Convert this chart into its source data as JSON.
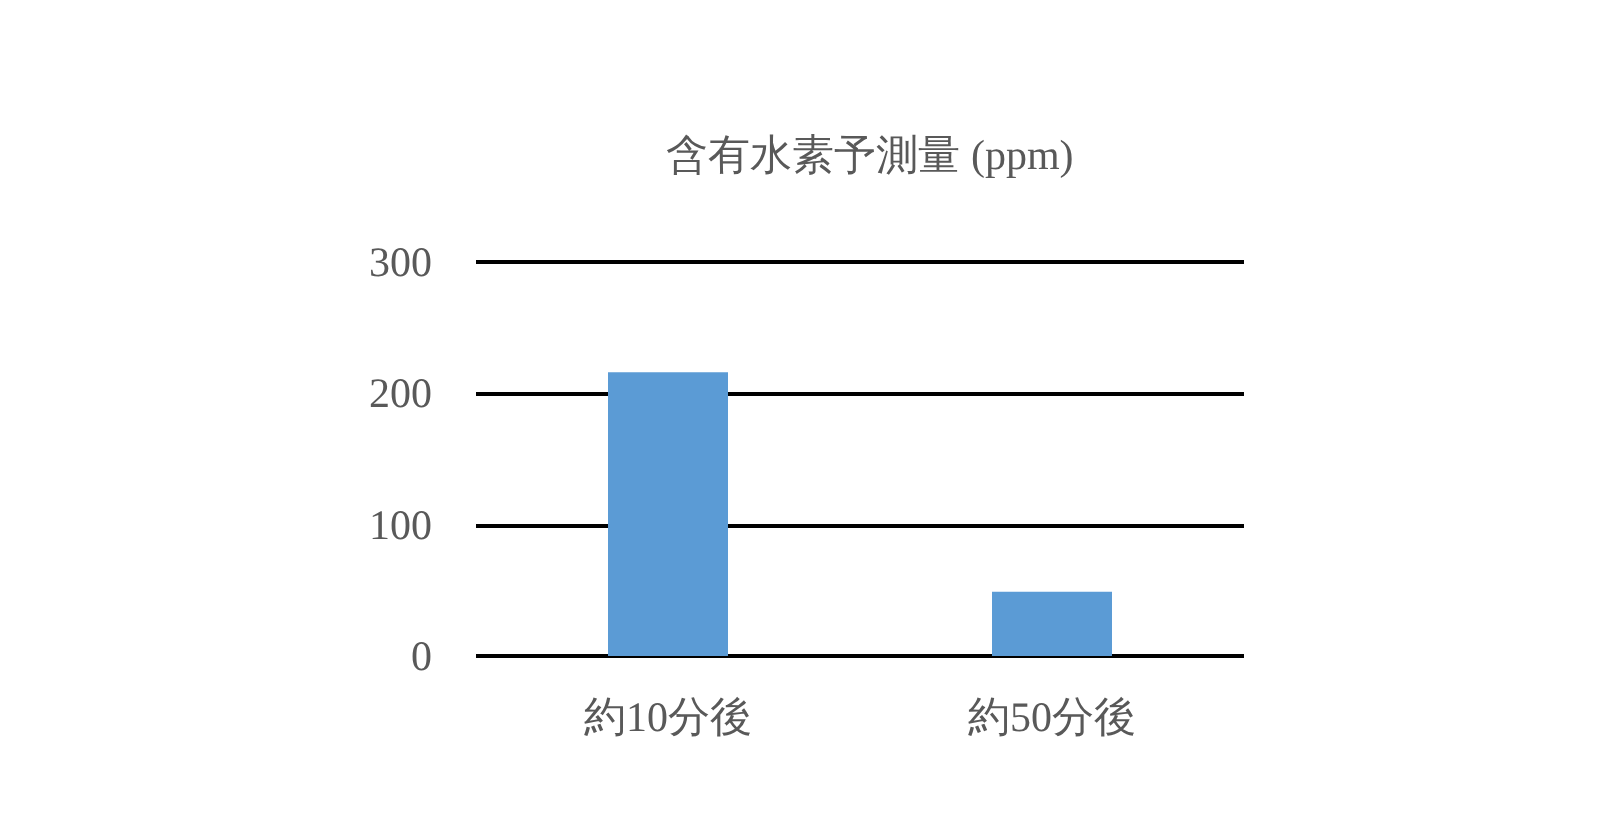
{
  "chart_data": {
    "type": "bar",
    "title": "含有水素予測量 (ppm)",
    "categories": [
      "約10分後",
      "約50分後"
    ],
    "values": [
      216,
      49
    ],
    "color": "#5b9bd5",
    "ylim": [
      0,
      300
    ],
    "yticks": [
      0,
      100,
      200,
      300
    ],
    "grid": "y"
  }
}
